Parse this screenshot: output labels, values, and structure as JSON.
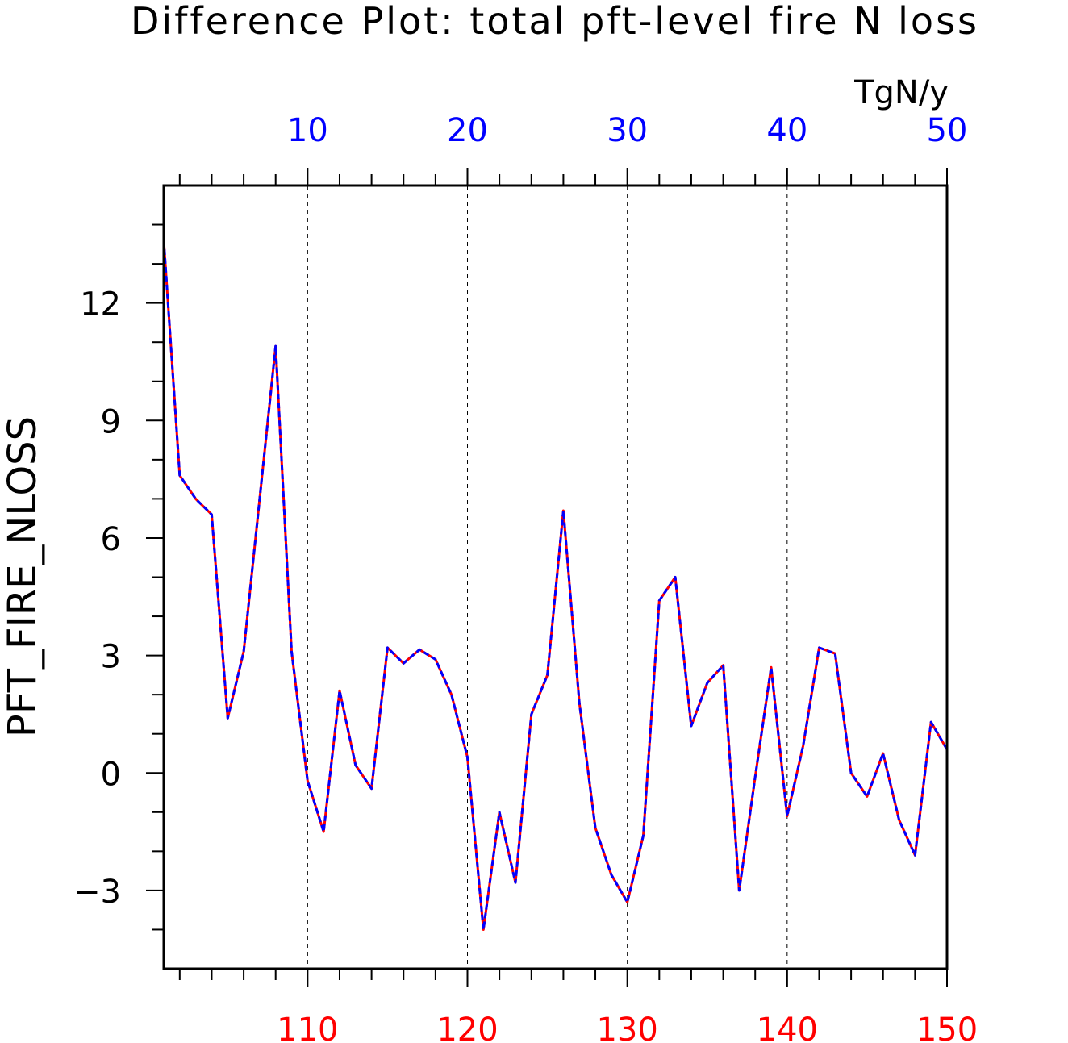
{
  "chart_data": {
    "type": "line",
    "title": "Difference Plot: total pft-level fire N loss",
    "units": "TgN/y",
    "ylabel": "PFT_FIRE_NLOSS",
    "ylim": [
      -5,
      15
    ],
    "y_ticks": [
      "−3",
      "0",
      "3",
      "6",
      "9",
      "12"
    ],
    "y_tick_values": [
      -3,
      0,
      3,
      6,
      9,
      12
    ],
    "top_axis": {
      "color": "#0000ff",
      "ticks": [
        "10",
        "20",
        "30",
        "40",
        "50"
      ],
      "tick_values": [
        10,
        20,
        30,
        40,
        50
      ],
      "range": [
        1,
        50
      ]
    },
    "bottom_axis": {
      "color": "#ff0000",
      "ticks": [
        "110",
        "120",
        "130",
        "140",
        "150"
      ],
      "tick_values": [
        110,
        120,
        130,
        140,
        150
      ],
      "range": [
        101,
        150
      ]
    },
    "grid": "vertical dashed at major ticks",
    "series": [
      {
        "color": "#ff0000",
        "style": "solid",
        "x": [
          101,
          102,
          103,
          104,
          105,
          106,
          107,
          108,
          109,
          110,
          111,
          112,
          113,
          114,
          115,
          116,
          117,
          118,
          119,
          120,
          121,
          122,
          123,
          124,
          125,
          126,
          127,
          128,
          129,
          130,
          131,
          132,
          133,
          134,
          135,
          136,
          137,
          138,
          139,
          140,
          141,
          142,
          143,
          144,
          145,
          146,
          147,
          148,
          149,
          150
        ],
        "values": [
          13.6,
          7.6,
          7.0,
          6.6,
          1.4,
          3.1,
          7.0,
          10.9,
          3.1,
          -0.2,
          -1.5,
          2.1,
          0.2,
          -0.4,
          3.2,
          2.8,
          3.15,
          2.9,
          2.0,
          0.4,
          -4.0,
          -1.0,
          -2.8,
          1.5,
          2.5,
          6.7,
          1.8,
          -1.4,
          -2.6,
          -3.3,
          -1.6,
          4.4,
          5.0,
          1.2,
          2.3,
          2.75,
          -3.0,
          -0.1,
          2.7,
          -1.1,
          0.7,
          3.2,
          3.05,
          0.0,
          -0.6,
          0.5,
          -1.2,
          -2.1,
          1.3,
          0.6
        ]
      },
      {
        "color": "#0000ff",
        "style": "dashed",
        "x": [
          1,
          2,
          3,
          4,
          5,
          6,
          7,
          8,
          9,
          10,
          11,
          12,
          13,
          14,
          15,
          16,
          17,
          18,
          19,
          20,
          21,
          22,
          23,
          24,
          25,
          26,
          27,
          28,
          29,
          30,
          31,
          32,
          33,
          34,
          35,
          36,
          37,
          38,
          39,
          40,
          41,
          42,
          43,
          44,
          45,
          46,
          47,
          48,
          49,
          50
        ],
        "values": [
          13.6,
          7.6,
          7.0,
          6.6,
          1.4,
          3.1,
          7.0,
          10.9,
          3.1,
          -0.2,
          -1.5,
          2.1,
          0.2,
          -0.4,
          3.2,
          2.8,
          3.15,
          2.9,
          2.0,
          0.4,
          -4.0,
          -1.0,
          -2.8,
          1.5,
          2.5,
          6.7,
          1.8,
          -1.4,
          -2.6,
          -3.3,
          -1.6,
          4.4,
          5.0,
          1.2,
          2.3,
          2.75,
          -3.0,
          -0.1,
          2.7,
          -1.1,
          0.7,
          3.2,
          3.05,
          0.0,
          -0.6,
          0.5,
          -1.2,
          -2.1,
          1.3,
          0.6
        ]
      }
    ]
  }
}
